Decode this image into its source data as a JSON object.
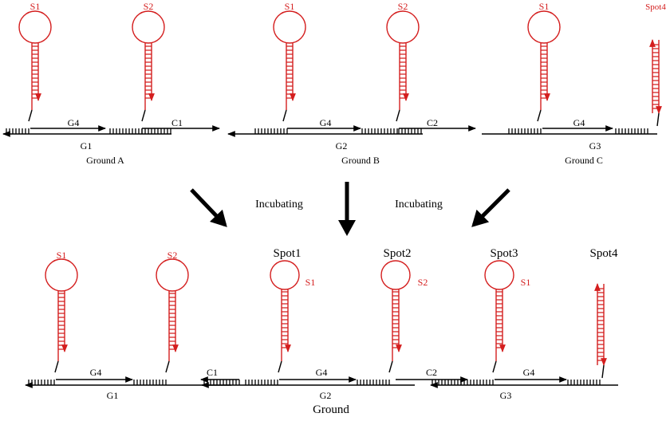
{
  "colors": {
    "probe": "#d41e1e",
    "strand": "#000000"
  },
  "top": {
    "panels": [
      {
        "caption": "Ground A",
        "probe_labels": [
          "S1",
          "S2"
        ],
        "strand_labels": [
          "G4",
          "C1"
        ],
        "ground_label": "G1"
      },
      {
        "caption": "Ground B",
        "probe_labels": [
          "S1",
          "S2"
        ],
        "strand_labels": [
          "G4",
          "C2"
        ],
        "ground_label": "G2"
      },
      {
        "caption": "Ground C",
        "probe_labels": [
          "S1",
          "Spot4"
        ],
        "strand_labels": [
          "G4"
        ],
        "ground_label": "G3"
      }
    ]
  },
  "middle": {
    "step_left": "Incubating",
    "step_right": "Incubating"
  },
  "bottom": {
    "caption": "Ground",
    "probe_labels": [
      "S1",
      "S2",
      "S1",
      "S2",
      "S1"
    ],
    "spot_labels": [
      "Spot1",
      "Spot2",
      "Spot3",
      "Spot4"
    ],
    "strand_labels": [
      "G4",
      "C1",
      "G4",
      "C2",
      "G4"
    ],
    "ground_labels": [
      "G1",
      "G2",
      "G3"
    ]
  }
}
